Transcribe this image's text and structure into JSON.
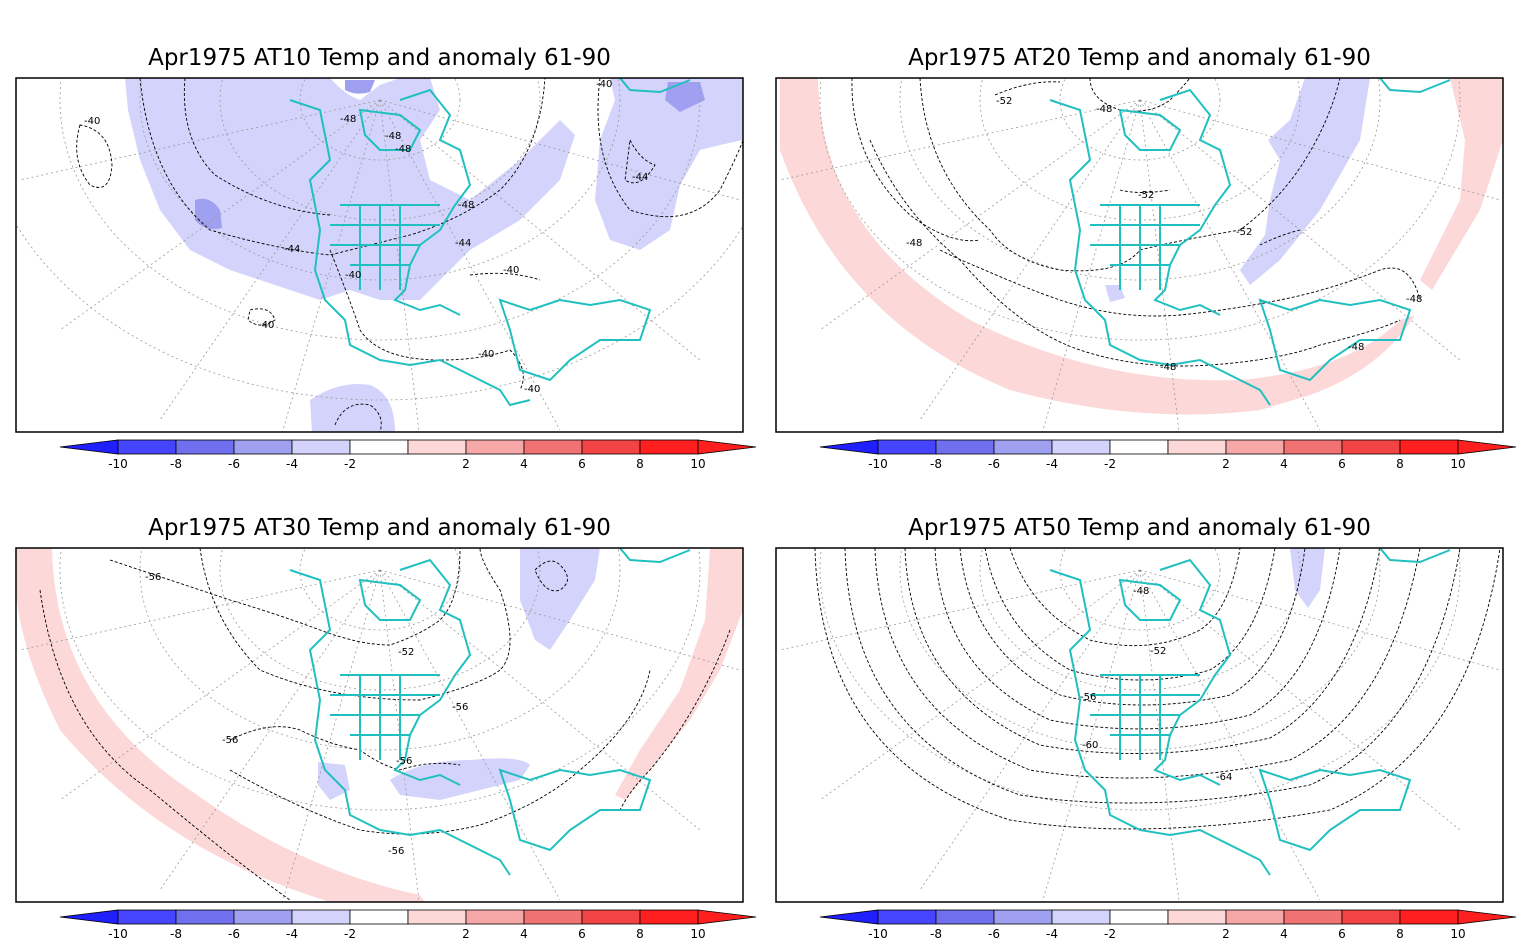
{
  "panels": [
    {
      "id": "at10",
      "title": "Apr1975 AT10 Temp and anomaly 61-90",
      "contour_labels": [
        "-40",
        "-44",
        "-48",
        "-48",
        "-48",
        "-48",
        "-44",
        "-44",
        "-40",
        "-40",
        "-40",
        "-40",
        "-40",
        "-40"
      ]
    },
    {
      "id": "at20",
      "title": "Apr1975 AT20 Temp and anomaly 61-90",
      "contour_labels": [
        "-52",
        "-48",
        "-52",
        "-52",
        "-48",
        "-48",
        "-48",
        "-48"
      ]
    },
    {
      "id": "at30",
      "title": "Apr1975 AT30 Temp and anomaly 61-90",
      "contour_labels": [
        "-56",
        "-52",
        "-56",
        "-56",
        "-56",
        "-56"
      ]
    },
    {
      "id": "at50",
      "title": "Apr1975 AT50 Temp and anomaly 61-90",
      "contour_labels": [
        "-48",
        "-52",
        "-56",
        "-60",
        "-64"
      ]
    }
  ],
  "colorbar": {
    "tick_labels": [
      "-10",
      "-8",
      "-6",
      "-4",
      "-2",
      "2",
      "4",
      "6",
      "8",
      "10"
    ],
    "colors": [
      "#1f1fff",
      "#4545ff",
      "#7070ee",
      "#a0a0f0",
      "#d3d3fb",
      "#ffffff",
      "#fcd8d8",
      "#f6a7a7",
      "#f07272",
      "#f24444",
      "#ff1f1f",
      "#ff1f1f"
    ]
  },
  "colors": {
    "coastline": "#21c0c0",
    "neg_anomaly": "#d3d3fb",
    "neg_anomaly_strong": "#a0a0f0",
    "pos_anomaly": "#fcd8d8",
    "contour": "#000000",
    "grid": "#9a9a9a"
  }
}
